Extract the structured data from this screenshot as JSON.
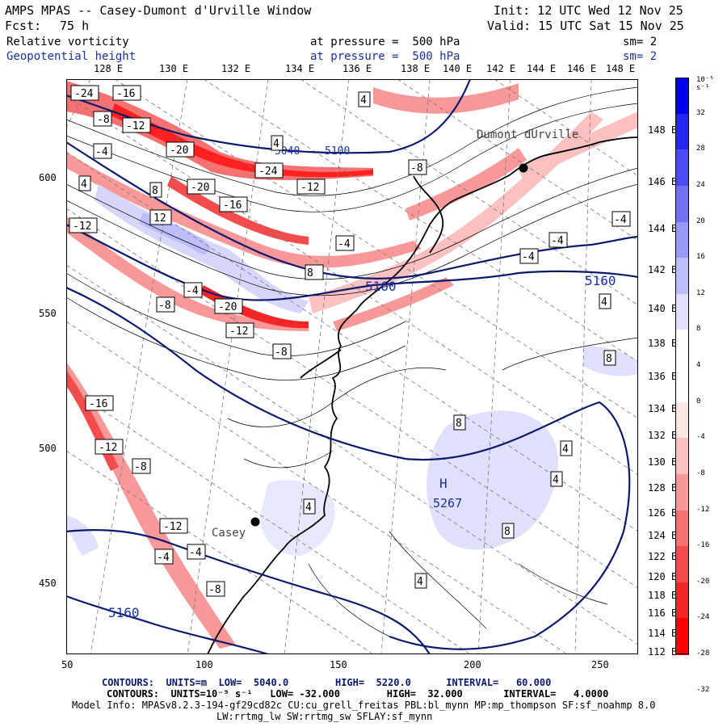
{
  "header": {
    "title": "AMPS MPAS -- Casey-Dumont d'Urville Window",
    "init": "Init: 12 UTC Wed 12 Nov 25",
    "fcst_label": "Fcst:",
    "fcst_value": "75 h",
    "valid": "Valid: 15 UTC Sat 15 Nov 25",
    "field1": "Relative vorticity",
    "field1_level": "at pressure =  500 hPa",
    "field1_sm": "sm= 2",
    "field2": "Geopotential height",
    "field2_level": "at pressure =  500 hPa",
    "field2_sm": "sm= 2"
  },
  "map": {
    "top_lon_labels": [
      "128 E",
      "130 E",
      "132 E",
      "134 E",
      "136 E",
      "138 E",
      "140 E",
      "142 E",
      "144 E",
      "146 E",
      "148 E"
    ],
    "right_lat_labels": [
      "148 E",
      "146 E",
      "144 E",
      "142 E",
      "140 E",
      "138 E",
      "136 E",
      "134 E",
      "132 E",
      "130 E",
      "128 E",
      "126 E",
      "124 E",
      "122 E",
      "120 E",
      "118 E",
      "116 E",
      "114 E",
      "112 E"
    ],
    "x_ticks": [
      "50",
      "100",
      "150",
      "200",
      "250"
    ],
    "y_ticks": [
      "600",
      "550",
      "500",
      "450"
    ],
    "places": [
      "Dumont dUrville",
      "Casey"
    ],
    "high_label": "H",
    "high_value": "5267",
    "height_labels": [
      "5160",
      "5160",
      "5160",
      "5040",
      "5100"
    ],
    "vort_labels": [
      "-24",
      "-16",
      "-8",
      "-12",
      "-20",
      "-4",
      "4",
      "8",
      "12",
      "-24",
      "-20",
      "-16",
      "-12",
      "-8",
      "-4",
      "4",
      "8",
      "-12",
      "-4",
      "-8",
      "-20",
      "-12",
      "-8",
      "-16",
      "-12",
      "-8",
      "-12",
      "-4",
      "-4",
      "-8",
      "4",
      "8"
    ]
  },
  "colorbar": {
    "unit": "10⁻⁵ s⁻¹",
    "labels": [
      "32",
      "28",
      "24",
      "20",
      "16",
      "12",
      "8",
      "4",
      "0",
      "-4",
      "-8",
      "-12",
      "-16",
      "-20",
      "-24",
      "-28",
      "-32"
    ],
    "colors": [
      "#0000f0",
      "#2626f2",
      "#4c4cf4",
      "#7272f6",
      "#9898f8",
      "#bdbdfb",
      "#e0e0fd",
      "#ffffff",
      "#ffffff",
      "#fde6e6",
      "#fbc0c0",
      "#f89898",
      "#f67272",
      "#f44c4c",
      "#f22626",
      "#ff0000"
    ]
  },
  "footer": {
    "line1": "CONTOURS:  UNITS=m  LOW=  5040.0        HIGH=  5220.0      INTERVAL=   60.000",
    "line2": "CONTOURS:  UNITS=10⁻⁵ s⁻¹   LOW= -32.000        HIGH=  32.000       INTERVAL=   4.0000",
    "line3": "Model Info: MPASv8.2.3-194-gf29cd82c CU:cu_grell_freitas PBL:bl_mynn MP:mp_thompson SF:sf_noahmp 8.0",
    "line4": "LW:rrtmg_lw SW:rrtmg_sw SFLAY:sf_mynn"
  },
  "colors": {
    "height_contour": "#0b1a6e",
    "vort_pos": "#1f2fe0",
    "vort_neg": "#ff0000"
  }
}
